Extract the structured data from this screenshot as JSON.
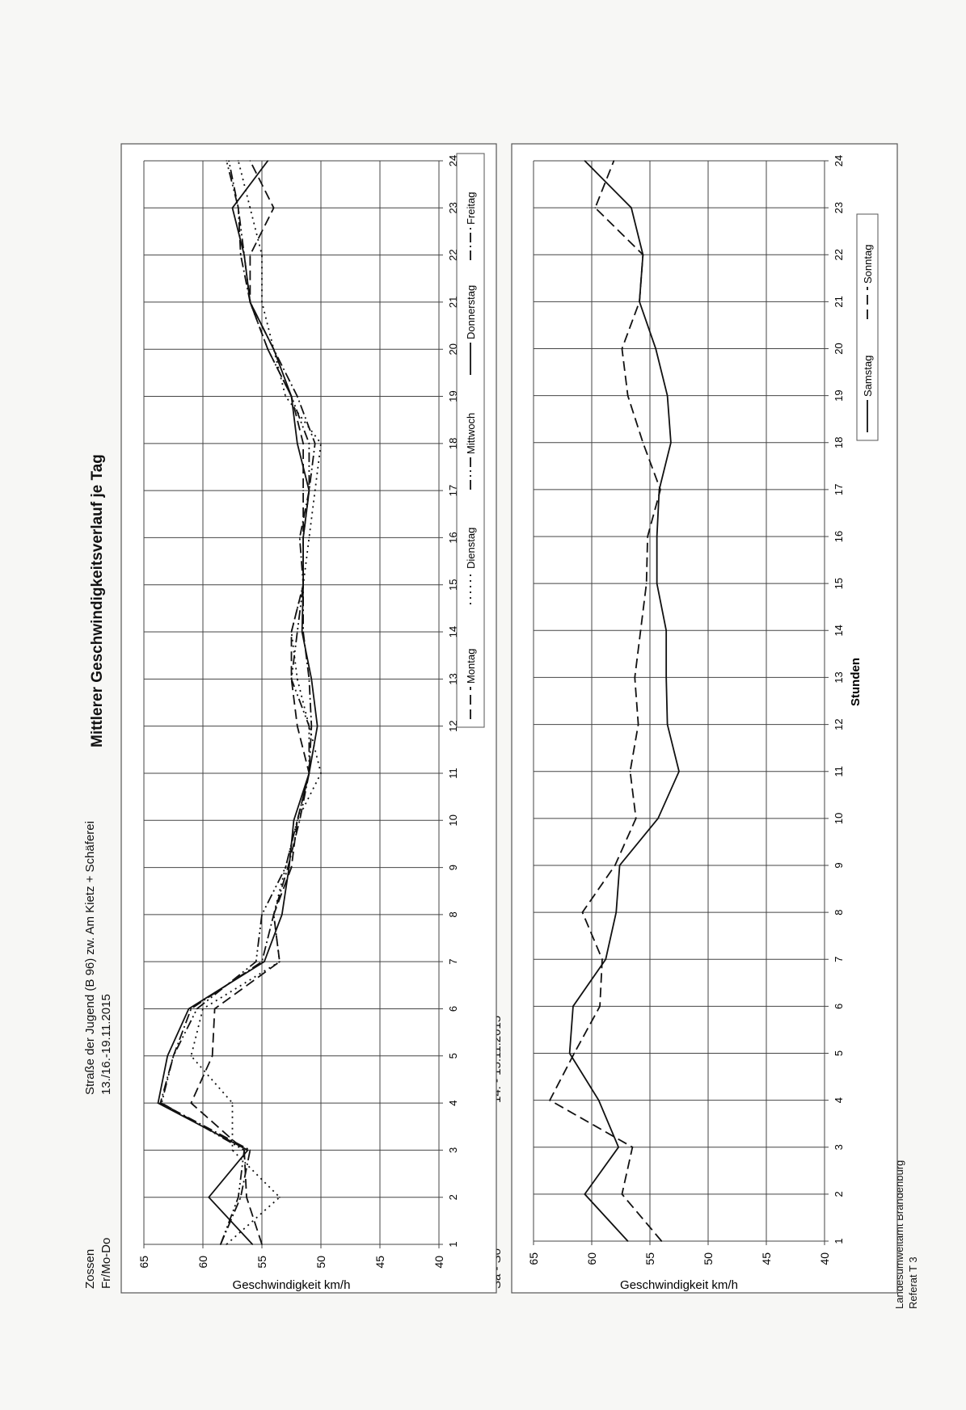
{
  "header": {
    "location": "Zossen",
    "period_label": "Fr/Mo-Do",
    "street": "Straße der Jugend (B 96) zw. Am Kietz + Schäferei",
    "dates": "13./16.-19.11.2015",
    "title": "Mittlerer Geschwindigkeitsverlauf je Tag"
  },
  "footer": {
    "line1": "Landesumweltamt Brandenburg",
    "line2": "Referat T 3"
  },
  "chart_data": [
    {
      "type": "line",
      "panel_label": "Fr/Mo-Do",
      "ylabel": "Geschwindigkeit km/h",
      "xlabel": "",
      "ylim": [
        40,
        65
      ],
      "yticks": [
        65,
        60,
        55,
        50,
        45,
        40
      ],
      "xlim": [
        1,
        24
      ],
      "x": [
        1,
        2,
        3,
        4,
        5,
        6,
        7,
        8,
        9,
        10,
        11,
        12,
        13,
        14,
        15,
        16,
        17,
        18,
        19,
        20,
        21,
        22,
        23,
        24
      ],
      "grid": true,
      "legend": "bottom",
      "series": [
        {
          "name": "Montag",
          "style": "dashed",
          "values": [
            55,
            56.3,
            56.5,
            61,
            59.2,
            59,
            53.5,
            54,
            52.5,
            52,
            51,
            52,
            52.5,
            52.5,
            51.5,
            51.5,
            51.5,
            51.5,
            52.5,
            54.5,
            56,
            56,
            54,
            56
          ]
        },
        {
          "name": "Dienstag",
          "style": "dotted",
          "values": [
            58,
            53.5,
            57.5,
            57.5,
            61,
            60,
            53.5,
            54,
            53,
            52,
            50,
            51,
            52,
            52.5,
            51.5,
            51,
            50.5,
            50,
            53,
            54,
            55,
            55,
            56,
            57
          ]
        },
        {
          "name": "Mittwoch",
          "style": "dash-dot-dot",
          "values": [
            58.5,
            57,
            56.5,
            63.5,
            62.5,
            60.5,
            55.5,
            55,
            53,
            52,
            51,
            51,
            52.5,
            52,
            51.5,
            51.5,
            51,
            51,
            52.5,
            54.5,
            56,
            56.5,
            57,
            58
          ]
        },
        {
          "name": "Donnerstag",
          "style": "solid",
          "values": [
            55.8,
            59.5,
            56.2,
            63.8,
            63,
            61.2,
            54.8,
            53.3,
            52.7,
            52.3,
            51,
            50.3,
            50.8,
            51.6,
            51.5,
            51.5,
            51,
            52,
            52.5,
            54,
            56,
            56.5,
            57.5,
            54.5
          ]
        },
        {
          "name": "Freitag",
          "style": "dash-dot",
          "values": [
            58.5,
            56.8,
            56,
            63.6,
            62.5,
            61,
            55,
            54,
            52.8,
            51.8,
            51,
            50.8,
            51,
            51.5,
            51.5,
            51.8,
            51,
            50.5,
            52,
            54,
            56,
            56.8,
            57,
            57.8
          ]
        }
      ]
    },
    {
      "type": "line",
      "panel_label": "Sa - So",
      "dates": "14. - 15.11.2015",
      "ylabel": "Geschwindigkeit km/h",
      "xlabel": "Stunden",
      "ylim": [
        40,
        65
      ],
      "yticks": [
        65,
        60,
        55,
        50,
        45,
        40
      ],
      "xlim": [
        1,
        24
      ],
      "x": [
        1,
        2,
        3,
        4,
        5,
        6,
        7,
        8,
        9,
        10,
        11,
        12,
        13,
        14,
        15,
        16,
        17,
        18,
        19,
        20,
        21,
        22,
        23,
        24
      ],
      "grid": true,
      "legend": "bottom-right",
      "series": [
        {
          "name": "Samstag",
          "style": "solid",
          "values": [
            56.9,
            60.6,
            57.7,
            59.4,
            61.9,
            61.6,
            58.8,
            57.9,
            57.6,
            54.3,
            52.5,
            53.5,
            53.6,
            53.6,
            54.4,
            54.4,
            54.2,
            53.2,
            53.5,
            54.5,
            55.9,
            55.6,
            56.6,
            60.6
          ]
        },
        {
          "name": "Sonntag",
          "style": "dashed",
          "values": [
            54,
            57.4,
            56.5,
            63.6,
            61.5,
            59.3,
            59.1,
            60.8,
            58,
            56.2,
            56.7,
            56,
            56.3,
            55.8,
            55.3,
            55.2,
            54.1,
            55.6,
            56.9,
            57.4,
            55.9,
            55.6,
            59.7,
            58.1
          ]
        }
      ]
    }
  ]
}
